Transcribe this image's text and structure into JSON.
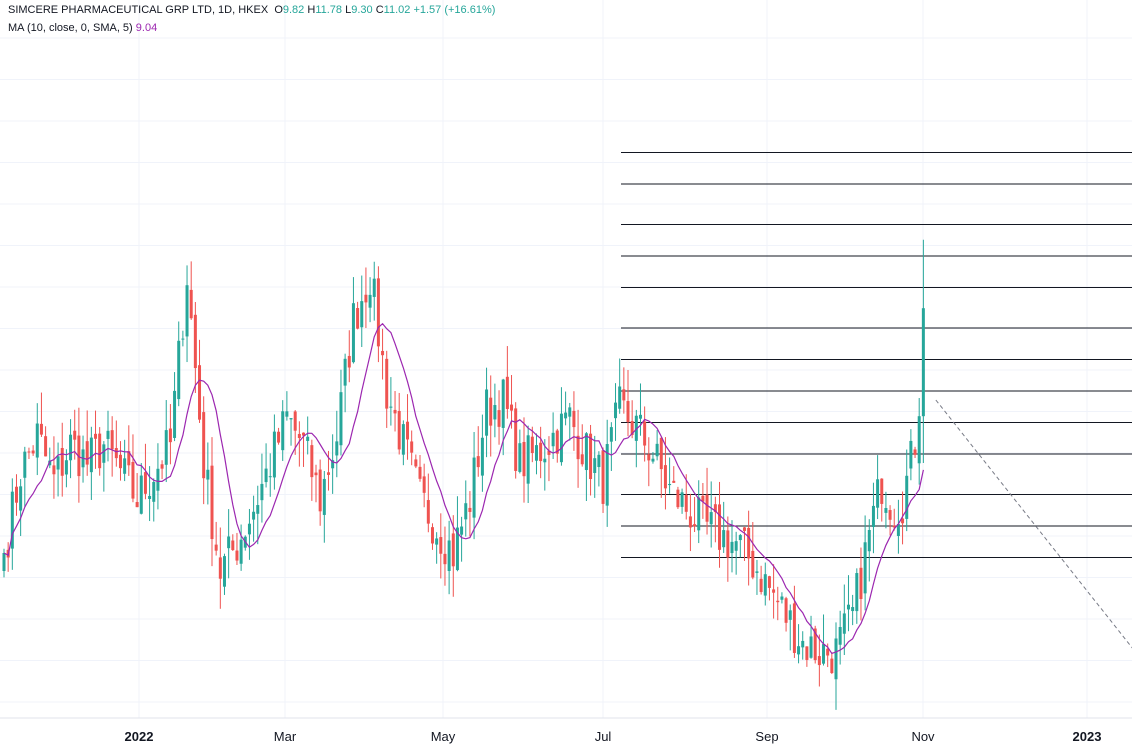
{
  "legend": {
    "symbol": "SIMCERE PHARMACEUTICAL GRP LTD, 1D, HKEX",
    "o_label": "O",
    "o_value": "9.82",
    "h_label": "H",
    "h_value": "11.78",
    "l_label": "L",
    "l_value": "9.30",
    "c_label": "C",
    "c_value": "11.02",
    "change": "+1.57 (+16.61%)",
    "ma_label": "MA (10, close, 0, SMA, 5)",
    "ma_value": "9.04"
  },
  "colors": {
    "up": "#26a69a",
    "down": "#ef5350",
    "ma": "#9c27b0",
    "level_line": "#131722",
    "trend_line": "#787b86",
    "grid": "#f0f3fa",
    "axis_text": "#131722"
  },
  "chart_data": {
    "type": "candlestick",
    "x_tick_labels": [
      {
        "label": "2022",
        "bold": true
      },
      {
        "label": "Mar",
        "bold": false
      },
      {
        "label": "May",
        "bold": false
      },
      {
        "label": "Jul",
        "bold": false
      },
      {
        "label": "Sep",
        "bold": false
      },
      {
        "label": "Nov",
        "bold": false
      },
      {
        "label": "2023",
        "bold": true
      }
    ],
    "ylim": [
      6.5,
      14.0
    ],
    "last_bar": {
      "open": 9.82,
      "high": 11.78,
      "low": 9.3,
      "close": 11.02
    },
    "ma": {
      "period": 10,
      "type": "SMA",
      "last": 9.04
    },
    "waypoints": [
      [
        0,
        8.3
      ],
      [
        4,
        9.2
      ],
      [
        8,
        9.6
      ],
      [
        12,
        9.1
      ],
      [
        16,
        9.5
      ],
      [
        20,
        9.3
      ],
      [
        24,
        9.5
      ],
      [
        28,
        9.2
      ],
      [
        32,
        8.9
      ],
      [
        36,
        9.2
      ],
      [
        40,
        9.5
      ],
      [
        44,
        11.4
      ],
      [
        48,
        9.3
      ],
      [
        52,
        8.1
      ],
      [
        56,
        8.4
      ],
      [
        60,
        8.8
      ],
      [
        64,
        9.3
      ],
      [
        68,
        9.8
      ],
      [
        72,
        9.5
      ],
      [
        76,
        8.9
      ],
      [
        80,
        9.6
      ],
      [
        84,
        10.9
      ],
      [
        88,
        11.4
      ],
      [
        92,
        10.1
      ],
      [
        96,
        9.5
      ],
      [
        100,
        8.9
      ],
      [
        104,
        8.6
      ],
      [
        108,
        8.3
      ],
      [
        112,
        8.9
      ],
      [
        116,
        9.9
      ],
      [
        120,
        10.0
      ],
      [
        124,
        9.3
      ],
      [
        128,
        9.4
      ],
      [
        132,
        9.6
      ],
      [
        136,
        9.8
      ],
      [
        140,
        9.4
      ],
      [
        144,
        9.1
      ],
      [
        148,
        9.9
      ],
      [
        152,
        9.7
      ],
      [
        156,
        9.4
      ],
      [
        160,
        9.0
      ],
      [
        164,
        8.8
      ],
      [
        168,
        8.6
      ],
      [
        172,
        8.5
      ],
      [
        176,
        8.4
      ],
      [
        180,
        8.2
      ],
      [
        184,
        7.9
      ],
      [
        188,
        7.6
      ],
      [
        192,
        7.3
      ],
      [
        196,
        7.2
      ],
      [
        200,
        7.2
      ],
      [
        204,
        7.6
      ],
      [
        208,
        8.5
      ],
      [
        211,
        9.1
      ],
      [
        214,
        8.8
      ],
      [
        216,
        8.9
      ],
      [
        218,
        9.3
      ],
      [
        220,
        9.82
      ],
      [
        221,
        11.02
      ]
    ],
    "trend_line": {
      "start": [
        224,
        10.0
      ],
      "end": [
        272,
        7.2
      ]
    },
    "level_lines": [
      12.75,
      12.4,
      11.95,
      11.6,
      11.25,
      10.8,
      10.45,
      10.1,
      9.75,
      9.4,
      8.95,
      8.6,
      8.25
    ]
  }
}
